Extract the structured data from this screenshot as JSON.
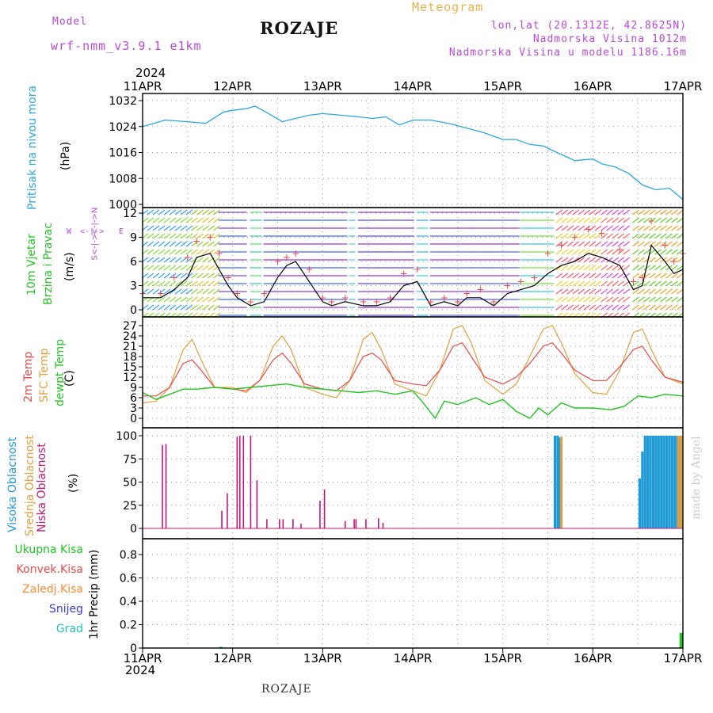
{
  "header": {
    "model_label": "Model",
    "model_name": "wrf-nmm_v3.9.1 e1km",
    "station": "ROZAJE",
    "meteogram": "Meteogram",
    "lonlat": "lon,lat (20.1312E, 42.8625N)",
    "elev": "Nadmorska Visina 1012m",
    "elev_model": "Nadmorska Visina u modelu 1186.16m",
    "year_top": "2024",
    "year_bottom": "2024",
    "footer_station": "ROZAJE",
    "credit": "made by Angel"
  },
  "axis_labels": {
    "pressure_name": "Pritisak na nivou mora",
    "pressure_unit": "(hPa)",
    "wind_name1": "10m Vjetar",
    "wind_name2": "Brzina i Pravac",
    "wind_unit": "(m/s)",
    "wind_compass_w": "W",
    "wind_compass_e": "E",
    "wind_compass_n": "<-|->N",
    "wind_compass_s": "S<-|->",
    "temp_2m": "2m Temp",
    "temp_sfc": "SFC Temp",
    "temp_dew": "dewpt Temp",
    "temp_unit": "(C)",
    "cloud_high": "Visoka Oblacnost",
    "cloud_mid": "Srednja Oblacnost",
    "cloud_low": "Niska Oblacnost",
    "cloud_unit": "(%)",
    "precip_unit": "1hr Precip (mm)",
    "precip_legend": [
      "Ukupna Kisa",
      "Konvek.Kisa",
      "Zaledj.Kisa",
      "Snijeg",
      "Grad"
    ]
  },
  "colors": {
    "pressure": "#2aa8e0",
    "temp2m": "#e84a4a",
    "sfc": "#e0a040",
    "dew": "#22c422",
    "high_cloud": "#1e9ad6",
    "mid_cloud": "#e0a040",
    "low_cloud": "#c0187a",
    "precip_total": "#22c422",
    "precip_conv": "#e84a4a",
    "precip_frz": "#ff8a3a",
    "precip_snow": "#3a3ae0",
    "precip_hail": "#22c0c0",
    "wind_speed": "#000000",
    "wind_gust": "#e84a4a",
    "wind_label_green": "#22c422",
    "compass": "#b84ad6",
    "credit": "#cccccc"
  },
  "chart_data": [
    {
      "type": "line",
      "panel": "pressure",
      "x_ticks": [
        "11APR",
        "12APR",
        "13APR",
        "14APR",
        "15APR",
        "16APR",
        "17APR"
      ],
      "x_range_days": [
        0,
        6
      ],
      "ylim": [
        1000,
        1032
      ],
      "y_ticks": [
        1000,
        1008,
        1016,
        1024,
        1032
      ],
      "grid": true,
      "series": [
        {
          "name": "Pritisak na nivou mora",
          "x": [
            0,
            0.25,
            0.5,
            0.7,
            0.9,
            1.0,
            1.15,
            1.25,
            1.4,
            1.55,
            1.7,
            1.85,
            2.0,
            2.2,
            2.4,
            2.55,
            2.7,
            2.85,
            3.0,
            3.2,
            3.4,
            3.6,
            3.8,
            4.0,
            4.15,
            4.3,
            4.45,
            4.6,
            4.8,
            5.0,
            5.1,
            5.25,
            5.4,
            5.55,
            5.7,
            5.85,
            6.0
          ],
          "values": [
            1024,
            1026,
            1025.5,
            1025,
            1028.5,
            1029,
            1029.5,
            1030.3,
            1028,
            1025.5,
            1026.5,
            1027.5,
            1028,
            1027.5,
            1027,
            1026.5,
            1027,
            1024.5,
            1026,
            1026,
            1025,
            1023.5,
            1022,
            1020,
            1020,
            1018.5,
            1018,
            1016,
            1013.5,
            1014,
            1012.5,
            1011.5,
            1009.5,
            1006,
            1004.5,
            1005,
            1001.5
          ]
        }
      ]
    },
    {
      "type": "line",
      "panel": "wind",
      "x_range_days": [
        0,
        6
      ],
      "ylim": [
        0,
        12
      ],
      "y_ticks": [
        0,
        3,
        6,
        9,
        12
      ],
      "grid": true,
      "series": [
        {
          "name": "speed",
          "x": [
            0,
            0.2,
            0.35,
            0.5,
            0.6,
            0.75,
            0.85,
            0.95,
            1.05,
            1.2,
            1.35,
            1.5,
            1.6,
            1.7,
            1.85,
            2.0,
            2.1,
            2.25,
            2.45,
            2.6,
            2.75,
            2.9,
            3.05,
            3.2,
            3.35,
            3.5,
            3.6,
            3.75,
            3.9,
            4.05,
            4.2,
            4.35,
            4.5,
            4.65,
            4.8,
            4.95,
            5.1,
            5.3,
            5.45,
            5.55,
            5.65,
            5.8,
            5.9,
            6.0
          ],
          "values": [
            1.5,
            1.5,
            2.5,
            4,
            6.5,
            7,
            5,
            3,
            1.5,
            0.5,
            1,
            4,
            5.5,
            6,
            3.5,
            1,
            0.5,
            1,
            0.5,
            0.5,
            1,
            3,
            3.5,
            0.5,
            1,
            0.5,
            1.5,
            1.5,
            0.5,
            2,
            2.5,
            3,
            4.5,
            5.5,
            6,
            7,
            6.5,
            5.5,
            2.5,
            3,
            8,
            6,
            4.5,
            5
          ]
        },
        {
          "name": "gust",
          "x": [
            0,
            0.2,
            0.35,
            0.5,
            0.6,
            0.75,
            0.85,
            0.95,
            1.05,
            1.2,
            1.35,
            1.5,
            1.6,
            1.7,
            1.85,
            2.0,
            2.1,
            2.25,
            2.45,
            2.6,
            2.75,
            2.9,
            3.05,
            3.2,
            3.35,
            3.5,
            3.6,
            3.75,
            3.9,
            4.05,
            4.2,
            4.35,
            4.5,
            4.65,
            4.8,
            4.95,
            5.1,
            5.3,
            5.45,
            5.55,
            5.65,
            5.8,
            5.9,
            6.0
          ],
          "values": [
            2,
            2,
            4,
            6.5,
            8.5,
            9,
            7,
            4,
            2,
            1,
            2,
            6,
            6.5,
            7,
            5,
            1.5,
            1,
            1.5,
            1,
            1,
            1.5,
            4.5,
            5,
            1,
            1.5,
            1,
            2,
            2.5,
            1,
            3,
            3.5,
            4,
            7,
            8,
            9,
            10,
            9.5,
            7.5,
            3.5,
            4,
            11,
            8,
            6,
            7
          ]
        }
      ]
    },
    {
      "type": "line",
      "panel": "temperature",
      "x_range_days": [
        0,
        6
      ],
      "ylim": [
        -1.5,
        28.5
      ],
      "y_ticks": [
        0,
        3,
        6,
        9,
        12,
        15,
        18,
        21,
        24,
        27
      ],
      "grid": true,
      "series": [
        {
          "name": "2m Temp",
          "x": [
            0,
            0.15,
            0.3,
            0.45,
            0.55,
            0.65,
            0.8,
            1.0,
            1.15,
            1.3,
            1.45,
            1.55,
            1.65,
            1.8,
            2.0,
            2.15,
            2.3,
            2.45,
            2.55,
            2.65,
            2.8,
            3.0,
            3.15,
            3.3,
            3.45,
            3.55,
            3.65,
            3.8,
            4.0,
            4.15,
            4.3,
            4.45,
            4.55,
            4.65,
            4.8,
            5.0,
            5.15,
            5.3,
            5.45,
            5.55,
            5.65,
            5.8,
            6.0
          ],
          "values": [
            6.5,
            6.5,
            9,
            16,
            17,
            14,
            9,
            8.5,
            8,
            11,
            17,
            19,
            16,
            10,
            8.5,
            8,
            11,
            18,
            19,
            17,
            11,
            10,
            9.5,
            14,
            21,
            22,
            18,
            12,
            10,
            12,
            16,
            21,
            22,
            19,
            14,
            11,
            11,
            15,
            20,
            21,
            17,
            12,
            10.5
          ]
        },
        {
          "name": "SFC Temp",
          "x": [
            0,
            0.15,
            0.3,
            0.45,
            0.55,
            0.65,
            0.8,
            1.0,
            1.15,
            1.3,
            1.45,
            1.55,
            1.65,
            1.8,
            2.0,
            2.15,
            2.3,
            2.45,
            2.55,
            2.65,
            2.8,
            3.0,
            3.15,
            3.3,
            3.45,
            3.55,
            3.65,
            3.8,
            4.0,
            4.15,
            4.3,
            4.45,
            4.55,
            4.65,
            4.8,
            5.0,
            5.15,
            5.3,
            5.45,
            5.55,
            5.65,
            5.8,
            6.0
          ],
          "values": [
            4.5,
            5,
            9,
            20,
            23,
            17,
            9,
            9,
            7.5,
            11,
            21,
            24,
            20,
            9,
            7,
            6,
            11,
            23,
            25,
            20,
            10,
            8,
            6.5,
            14,
            26,
            27,
            22,
            11,
            7,
            10,
            18,
            26,
            27,
            22,
            13,
            7.5,
            7,
            14,
            25,
            26,
            20,
            12,
            10
          ]
        },
        {
          "name": "dewpt Temp",
          "x": [
            0,
            0.15,
            0.3,
            0.45,
            0.6,
            0.8,
            1.0,
            1.2,
            1.4,
            1.6,
            1.8,
            2.0,
            2.2,
            2.4,
            2.6,
            2.8,
            3.0,
            3.1,
            3.25,
            3.35,
            3.5,
            3.7,
            3.85,
            4.0,
            4.15,
            4.3,
            4.4,
            4.5,
            4.65,
            4.8,
            5.0,
            5.2,
            5.35,
            5.5,
            5.65,
            5.8,
            6.0
          ],
          "values": [
            7.5,
            5.5,
            7,
            8.5,
            8.5,
            9,
            8.5,
            9,
            9.5,
            10,
            9,
            8.5,
            8,
            7.5,
            8,
            7,
            8,
            5,
            0,
            5,
            4,
            6,
            4,
            5.5,
            2,
            0,
            3,
            1,
            4.5,
            3,
            3,
            2.5,
            3.5,
            6.5,
            6,
            7,
            6.5
          ]
        }
      ]
    },
    {
      "type": "bar",
      "panel": "cloud",
      "x_range_days": [
        0,
        6
      ],
      "ylim": [
        0,
        100
      ],
      "y_ticks": [
        0,
        25,
        50,
        75,
        100
      ],
      "grid": true,
      "series": [
        {
          "name": "Niska Oblacnost",
          "x": [
            0.22,
            0.26,
            0.88,
            0.94,
            1.05,
            1.08,
            1.12,
            1.2,
            1.27,
            1.38,
            1.52,
            1.56,
            1.67,
            1.76,
            1.97,
            2.02,
            2.25,
            2.35,
            2.37,
            2.48,
            2.62,
            2.67
          ],
          "values": [
            90,
            91,
            19,
            38,
            99,
            100,
            100,
            100,
            52,
            10,
            10,
            10,
            10,
            5,
            30,
            42,
            8,
            10,
            10,
            10,
            11,
            6
          ]
        },
        {
          "name": "Visoka Oblacnost",
          "x": [
            4.58,
            4.61,
            4.63,
            5.52,
            5.55,
            5.58,
            5.61,
            5.64,
            5.67,
            5.7,
            5.73,
            5.76,
            5.79,
            5.82,
            5.85,
            5.88,
            5.91,
            5.94,
            5.97
          ],
          "values": [
            100,
            100,
            98,
            54,
            83,
            100,
            100,
            100,
            100,
            100,
            100,
            100,
            100,
            100,
            100,
            100,
            100,
            100,
            100
          ]
        },
        {
          "name": "Srednja Oblacnost",
          "x": [
            4.65,
            5.95,
            5.98
          ],
          "values": [
            99,
            100,
            100
          ]
        }
      ]
    },
    {
      "type": "bar",
      "panel": "precip",
      "x_ticks": [
        "11APR",
        "12APR",
        "13APR",
        "14APR",
        "15APR",
        "16APR",
        "17APR"
      ],
      "x_range_days": [
        0,
        6
      ],
      "ylim": [
        0,
        1
      ],
      "y_ticks": [
        0,
        0.2,
        0.4,
        0.6,
        0.8
      ],
      "grid": true,
      "series": [
        {
          "name": "Ukupna Kisa",
          "x": [
            0.87,
            5.98
          ],
          "values": [
            0.01,
            0.13
          ]
        }
      ]
    }
  ]
}
